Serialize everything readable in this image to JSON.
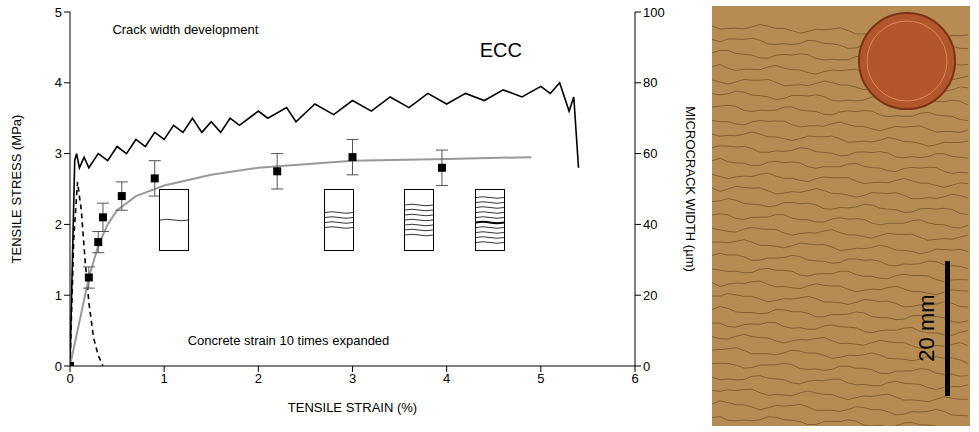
{
  "chart_data": {
    "type": "line",
    "xlabel": "TENSILE STRAIN (%)",
    "ylabel": "TENSILE STRESS (MPa)",
    "y2label": "MICROCRACK WIDTH (µm)",
    "xlim": [
      0,
      6
    ],
    "xticks": [
      0,
      1,
      2,
      3,
      4,
      5,
      6
    ],
    "ylim": [
      0,
      5
    ],
    "yticks": [
      0,
      1,
      2,
      3,
      4,
      5
    ],
    "y2lim": [
      0,
      100
    ],
    "y2ticks": [
      0,
      20,
      40,
      60,
      80,
      100
    ],
    "grid": false,
    "annotations": [
      "ECC",
      "Crack width development",
      "Concrete strain 10 times expanded"
    ],
    "series": [
      {
        "type": "line",
        "color": "#000000",
        "line_style": "solid",
        "x": [
          0,
          0.05,
          0.07,
          0.1,
          0.15,
          0.2,
          0.3,
          0.4,
          0.5,
          0.6,
          0.7,
          0.8,
          0.9,
          1.0,
          1.1,
          1.2,
          1.3,
          1.4,
          1.5,
          1.6,
          1.7,
          1.8,
          2.0,
          2.1,
          2.3,
          2.4,
          2.6,
          2.8,
          3.0,
          3.2,
          3.4,
          3.6,
          3.8,
          4.0,
          4.2,
          4.4,
          4.6,
          4.8,
          5.0,
          5.1,
          5.2,
          5.3,
          5.35,
          5.4
        ],
        "values": [
          0,
          2.9,
          3.0,
          2.8,
          2.95,
          2.8,
          3.0,
          2.9,
          3.1,
          3.0,
          3.2,
          3.1,
          3.3,
          3.2,
          3.4,
          3.3,
          3.5,
          3.3,
          3.45,
          3.3,
          3.5,
          3.4,
          3.6,
          3.5,
          3.65,
          3.45,
          3.7,
          3.55,
          3.75,
          3.6,
          3.8,
          3.65,
          3.85,
          3.7,
          3.85,
          3.75,
          3.9,
          3.8,
          3.95,
          3.85,
          4.0,
          3.6,
          3.8,
          2.8
        ]
      },
      {
        "type": "line",
        "color": "#000000",
        "line_style": "dashed",
        "x": [
          0,
          0.04,
          0.08,
          0.12,
          0.16,
          0.2,
          0.25,
          0.3,
          0.35
        ],
        "values": [
          0,
          1.8,
          2.6,
          2.2,
          1.5,
          0.9,
          0.4,
          0.15,
          0
        ]
      },
      {
        "type": "line",
        "axis": "y2",
        "color": "#999999",
        "line_style": "solid",
        "x": [
          0,
          0.2,
          0.3,
          0.4,
          0.5,
          0.7,
          1,
          1.5,
          2,
          3,
          4,
          4.9
        ],
        "values": [
          0,
          25,
          34,
          40,
          44,
          48,
          51,
          54,
          56,
          58,
          58.5,
          59
        ]
      },
      {
        "type": "scatter",
        "axis": "y2",
        "color": "#000000",
        "marker": "square",
        "x": [
          0,
          0.2,
          0.3,
          0.35,
          0.55,
          0.9,
          2.2,
          3.0,
          3.95
        ],
        "values": [
          0,
          25,
          35,
          42,
          48,
          53,
          55,
          59,
          56
        ],
        "errors": [
          0,
          3,
          3,
          4,
          4,
          5,
          5,
          5,
          5
        ]
      }
    ]
  },
  "photo": {
    "scale_bar": "20 mm"
  }
}
